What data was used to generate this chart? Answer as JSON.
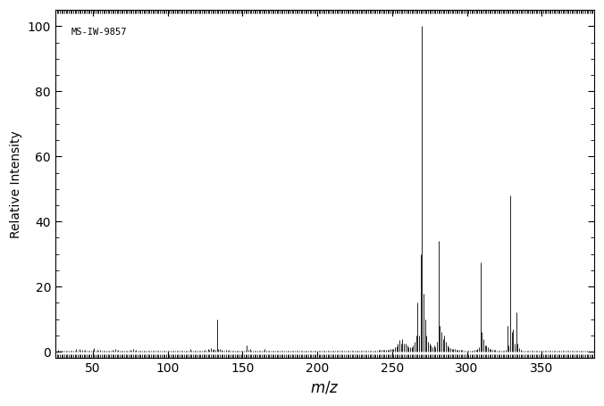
{
  "annotation": "MS-IW-9857",
  "ylabel": "Relative Intensity",
  "xlim": [
    25,
    385
  ],
  "ylim": [
    -2,
    105
  ],
  "xticks": [
    50,
    100,
    150,
    200,
    250,
    300,
    350
  ],
  "yticks": [
    0,
    20,
    40,
    60,
    80,
    100
  ],
  "background_color": "#ffffff",
  "line_color": "#000000",
  "peaks": [
    [
      27,
      0.5
    ],
    [
      28,
      0.3
    ],
    [
      29,
      0.4
    ],
    [
      30,
      0.3
    ],
    [
      31,
      0.3
    ],
    [
      32,
      0.3
    ],
    [
      33,
      0.3
    ],
    [
      34,
      0.2
    ],
    [
      35,
      0.2
    ],
    [
      36,
      0.2
    ],
    [
      37,
      0.3
    ],
    [
      38,
      0.3
    ],
    [
      39,
      1.0
    ],
    [
      40,
      0.4
    ],
    [
      41,
      0.8
    ],
    [
      42,
      0.4
    ],
    [
      43,
      0.5
    ],
    [
      44,
      0.3
    ],
    [
      45,
      0.5
    ],
    [
      46,
      0.3
    ],
    [
      47,
      0.3
    ],
    [
      48,
      0.3
    ],
    [
      49,
      0.3
    ],
    [
      50,
      0.7
    ],
    [
      51,
      1.2
    ],
    [
      52,
      0.4
    ],
    [
      53,
      0.5
    ],
    [
      54,
      0.3
    ],
    [
      55,
      0.5
    ],
    [
      56,
      0.3
    ],
    [
      57,
      0.4
    ],
    [
      58,
      0.3
    ],
    [
      59,
      0.3
    ],
    [
      60,
      0.3
    ],
    [
      61,
      0.4
    ],
    [
      62,
      0.3
    ],
    [
      63,
      0.6
    ],
    [
      64,
      0.3
    ],
    [
      65,
      1.0
    ],
    [
      66,
      0.4
    ],
    [
      67,
      0.5
    ],
    [
      68,
      0.3
    ],
    [
      69,
      0.4
    ],
    [
      70,
      0.3
    ],
    [
      71,
      0.3
    ],
    [
      72,
      0.3
    ],
    [
      73,
      0.4
    ],
    [
      74,
      0.3
    ],
    [
      75,
      0.5
    ],
    [
      76,
      0.3
    ],
    [
      77,
      0.8
    ],
    [
      78,
      0.4
    ],
    [
      79,
      0.6
    ],
    [
      80,
      0.3
    ],
    [
      81,
      0.4
    ],
    [
      82,
      0.3
    ],
    [
      83,
      0.3
    ],
    [
      84,
      0.3
    ],
    [
      85,
      0.3
    ],
    [
      86,
      0.3
    ],
    [
      87,
      0.3
    ],
    [
      88,
      0.3
    ],
    [
      89,
      0.4
    ],
    [
      90,
      0.3
    ],
    [
      91,
      0.4
    ],
    [
      92,
      0.3
    ],
    [
      93,
      0.3
    ],
    [
      94,
      0.3
    ],
    [
      95,
      0.3
    ],
    [
      96,
      0.3
    ],
    [
      97,
      0.3
    ],
    [
      98,
      0.3
    ],
    [
      99,
      0.3
    ],
    [
      100,
      0.3
    ],
    [
      101,
      0.3
    ],
    [
      102,
      0.3
    ],
    [
      103,
      0.3
    ],
    [
      104,
      0.3
    ],
    [
      105,
      0.4
    ],
    [
      106,
      0.3
    ],
    [
      107,
      0.3
    ],
    [
      108,
      0.3
    ],
    [
      109,
      0.3
    ],
    [
      110,
      0.3
    ],
    [
      111,
      0.3
    ],
    [
      112,
      0.3
    ],
    [
      113,
      0.3
    ],
    [
      114,
      0.3
    ],
    [
      115,
      0.8
    ],
    [
      116,
      0.3
    ],
    [
      117,
      0.4
    ],
    [
      118,
      0.3
    ],
    [
      119,
      0.3
    ],
    [
      120,
      0.3
    ],
    [
      121,
      0.4
    ],
    [
      122,
      0.3
    ],
    [
      123,
      0.4
    ],
    [
      124,
      0.3
    ],
    [
      125,
      0.6
    ],
    [
      126,
      0.4
    ],
    [
      127,
      0.8
    ],
    [
      128,
      0.6
    ],
    [
      129,
      1.2
    ],
    [
      130,
      0.7
    ],
    [
      131,
      1.0
    ],
    [
      132,
      0.6
    ],
    [
      133,
      10.0
    ],
    [
      134,
      1.0
    ],
    [
      135,
      0.8
    ],
    [
      136,
      0.5
    ],
    [
      137,
      0.4
    ],
    [
      138,
      0.4
    ],
    [
      139,
      0.5
    ],
    [
      140,
      0.3
    ],
    [
      141,
      0.6
    ],
    [
      142,
      0.4
    ],
    [
      143,
      0.3
    ],
    [
      144,
      0.3
    ],
    [
      145,
      0.4
    ],
    [
      146,
      0.3
    ],
    [
      147,
      0.3
    ],
    [
      148,
      0.3
    ],
    [
      149,
      0.3
    ],
    [
      150,
      0.3
    ],
    [
      151,
      0.3
    ],
    [
      152,
      0.3
    ],
    [
      153,
      2.0
    ],
    [
      154,
      0.5
    ],
    [
      155,
      0.8
    ],
    [
      156,
      0.3
    ],
    [
      157,
      0.4
    ],
    [
      158,
      0.3
    ],
    [
      159,
      0.3
    ],
    [
      160,
      0.3
    ],
    [
      161,
      0.3
    ],
    [
      162,
      0.3
    ],
    [
      163,
      0.4
    ],
    [
      164,
      0.3
    ],
    [
      165,
      1.0
    ],
    [
      166,
      0.4
    ],
    [
      167,
      0.4
    ],
    [
      168,
      0.3
    ],
    [
      169,
      0.3
    ],
    [
      170,
      0.3
    ],
    [
      171,
      0.3
    ],
    [
      172,
      0.3
    ],
    [
      173,
      0.3
    ],
    [
      174,
      0.3
    ],
    [
      175,
      0.3
    ],
    [
      176,
      0.3
    ],
    [
      177,
      0.3
    ],
    [
      178,
      0.3
    ],
    [
      179,
      0.3
    ],
    [
      180,
      0.3
    ],
    [
      181,
      0.3
    ],
    [
      182,
      0.3
    ],
    [
      183,
      0.3
    ],
    [
      184,
      0.3
    ],
    [
      185,
      0.3
    ],
    [
      186,
      0.3
    ],
    [
      187,
      0.3
    ],
    [
      188,
      0.3
    ],
    [
      189,
      0.3
    ],
    [
      190,
      0.3
    ],
    [
      191,
      0.3
    ],
    [
      192,
      0.3
    ],
    [
      193,
      0.3
    ],
    [
      194,
      0.3
    ],
    [
      195,
      0.3
    ],
    [
      196,
      0.3
    ],
    [
      197,
      0.3
    ],
    [
      198,
      0.3
    ],
    [
      199,
      0.3
    ],
    [
      200,
      0.3
    ],
    [
      201,
      0.3
    ],
    [
      202,
      0.3
    ],
    [
      203,
      0.3
    ],
    [
      204,
      0.3
    ],
    [
      205,
      0.3
    ],
    [
      206,
      0.3
    ],
    [
      207,
      0.3
    ],
    [
      208,
      0.3
    ],
    [
      209,
      0.3
    ],
    [
      210,
      0.3
    ],
    [
      211,
      0.3
    ],
    [
      212,
      0.3
    ],
    [
      213,
      0.3
    ],
    [
      214,
      0.3
    ],
    [
      215,
      0.3
    ],
    [
      216,
      0.3
    ],
    [
      217,
      0.3
    ],
    [
      218,
      0.3
    ],
    [
      219,
      0.3
    ],
    [
      220,
      0.3
    ],
    [
      221,
      0.3
    ],
    [
      222,
      0.3
    ],
    [
      223,
      0.3
    ],
    [
      224,
      0.3
    ],
    [
      225,
      0.3
    ],
    [
      226,
      0.3
    ],
    [
      227,
      0.3
    ],
    [
      228,
      0.3
    ],
    [
      229,
      0.3
    ],
    [
      230,
      0.3
    ],
    [
      231,
      0.3
    ],
    [
      232,
      0.3
    ],
    [
      233,
      0.4
    ],
    [
      234,
      0.4
    ],
    [
      235,
      0.4
    ],
    [
      236,
      0.4
    ],
    [
      237,
      0.4
    ],
    [
      238,
      0.4
    ],
    [
      239,
      0.4
    ],
    [
      240,
      0.4
    ],
    [
      241,
      0.5
    ],
    [
      242,
      0.5
    ],
    [
      243,
      0.5
    ],
    [
      244,
      0.5
    ],
    [
      245,
      0.7
    ],
    [
      246,
      0.6
    ],
    [
      247,
      0.7
    ],
    [
      248,
      0.7
    ],
    [
      249,
      0.8
    ],
    [
      250,
      1.0
    ],
    [
      251,
      1.0
    ],
    [
      252,
      1.5
    ],
    [
      253,
      1.8
    ],
    [
      254,
      2.5
    ],
    [
      255,
      3.5
    ],
    [
      256,
      2.5
    ],
    [
      257,
      4.0
    ],
    [
      258,
      2.5
    ],
    [
      259,
      2.5
    ],
    [
      260,
      2.0
    ],
    [
      261,
      1.5
    ],
    [
      262,
      1.5
    ],
    [
      263,
      1.5
    ],
    [
      264,
      2.0
    ],
    [
      265,
      3.0
    ],
    [
      266,
      5.0
    ],
    [
      267,
      15.0
    ],
    [
      268,
      5.0
    ],
    [
      269,
      30.0
    ],
    [
      270,
      100.0
    ],
    [
      271,
      18.0
    ],
    [
      272,
      10.0
    ],
    [
      273,
      5.0
    ],
    [
      274,
      3.0
    ],
    [
      275,
      2.5
    ],
    [
      276,
      2.0
    ],
    [
      277,
      1.5
    ],
    [
      278,
      2.0
    ],
    [
      279,
      1.5
    ],
    [
      280,
      3.0
    ],
    [
      281,
      34.0
    ],
    [
      282,
      8.0
    ],
    [
      283,
      6.0
    ],
    [
      284,
      4.0
    ],
    [
      285,
      5.0
    ],
    [
      286,
      3.0
    ],
    [
      287,
      2.0
    ],
    [
      288,
      1.5
    ],
    [
      289,
      1.2
    ],
    [
      290,
      1.0
    ],
    [
      291,
      1.0
    ],
    [
      292,
      0.8
    ],
    [
      293,
      0.7
    ],
    [
      294,
      0.6
    ],
    [
      295,
      0.5
    ],
    [
      296,
      0.5
    ],
    [
      297,
      0.5
    ],
    [
      298,
      0.4
    ],
    [
      299,
      0.4
    ],
    [
      300,
      0.4
    ],
    [
      301,
      0.4
    ],
    [
      302,
      0.4
    ],
    [
      303,
      0.4
    ],
    [
      304,
      0.4
    ],
    [
      305,
      0.5
    ],
    [
      306,
      0.5
    ],
    [
      307,
      0.8
    ],
    [
      308,
      1.5
    ],
    [
      309,
      27.5
    ],
    [
      310,
      6.0
    ],
    [
      311,
      4.0
    ],
    [
      312,
      2.0
    ],
    [
      313,
      2.0
    ],
    [
      314,
      1.5
    ],
    [
      315,
      1.0
    ],
    [
      316,
      0.8
    ],
    [
      317,
      0.6
    ],
    [
      318,
      0.5
    ],
    [
      319,
      0.5
    ],
    [
      320,
      0.4
    ],
    [
      321,
      0.4
    ],
    [
      322,
      0.4
    ],
    [
      323,
      0.4
    ],
    [
      324,
      0.4
    ],
    [
      325,
      0.4
    ],
    [
      326,
      0.5
    ],
    [
      327,
      8.0
    ],
    [
      328,
      2.0
    ],
    [
      329,
      48.0
    ],
    [
      330,
      6.0
    ],
    [
      331,
      7.0
    ],
    [
      332,
      2.5
    ],
    [
      333,
      12.0
    ],
    [
      334,
      2.5
    ],
    [
      335,
      1.2
    ],
    [
      336,
      0.5
    ],
    [
      337,
      0.4
    ],
    [
      338,
      0.4
    ],
    [
      339,
      0.4
    ],
    [
      340,
      0.3
    ],
    [
      341,
      0.3
    ],
    [
      342,
      0.3
    ],
    [
      343,
      0.3
    ],
    [
      344,
      0.3
    ],
    [
      345,
      0.3
    ],
    [
      346,
      0.3
    ],
    [
      347,
      0.3
    ],
    [
      348,
      0.3
    ],
    [
      349,
      0.3
    ],
    [
      350,
      0.3
    ],
    [
      351,
      0.3
    ],
    [
      352,
      0.3
    ],
    [
      353,
      0.3
    ],
    [
      354,
      0.3
    ],
    [
      355,
      0.3
    ],
    [
      356,
      0.3
    ],
    [
      357,
      0.3
    ],
    [
      358,
      0.3
    ],
    [
      359,
      0.3
    ],
    [
      360,
      0.3
    ],
    [
      361,
      0.3
    ],
    [
      362,
      0.3
    ],
    [
      363,
      0.3
    ],
    [
      364,
      0.3
    ],
    [
      365,
      0.3
    ],
    [
      366,
      0.3
    ],
    [
      367,
      0.3
    ],
    [
      368,
      0.3
    ],
    [
      369,
      0.3
    ],
    [
      370,
      0.3
    ],
    [
      371,
      0.3
    ],
    [
      372,
      0.3
    ],
    [
      373,
      0.3
    ],
    [
      374,
      0.3
    ],
    [
      375,
      0.3
    ],
    [
      376,
      0.3
    ],
    [
      377,
      0.3
    ],
    [
      378,
      0.3
    ],
    [
      379,
      0.3
    ],
    [
      380,
      0.3
    ]
  ]
}
